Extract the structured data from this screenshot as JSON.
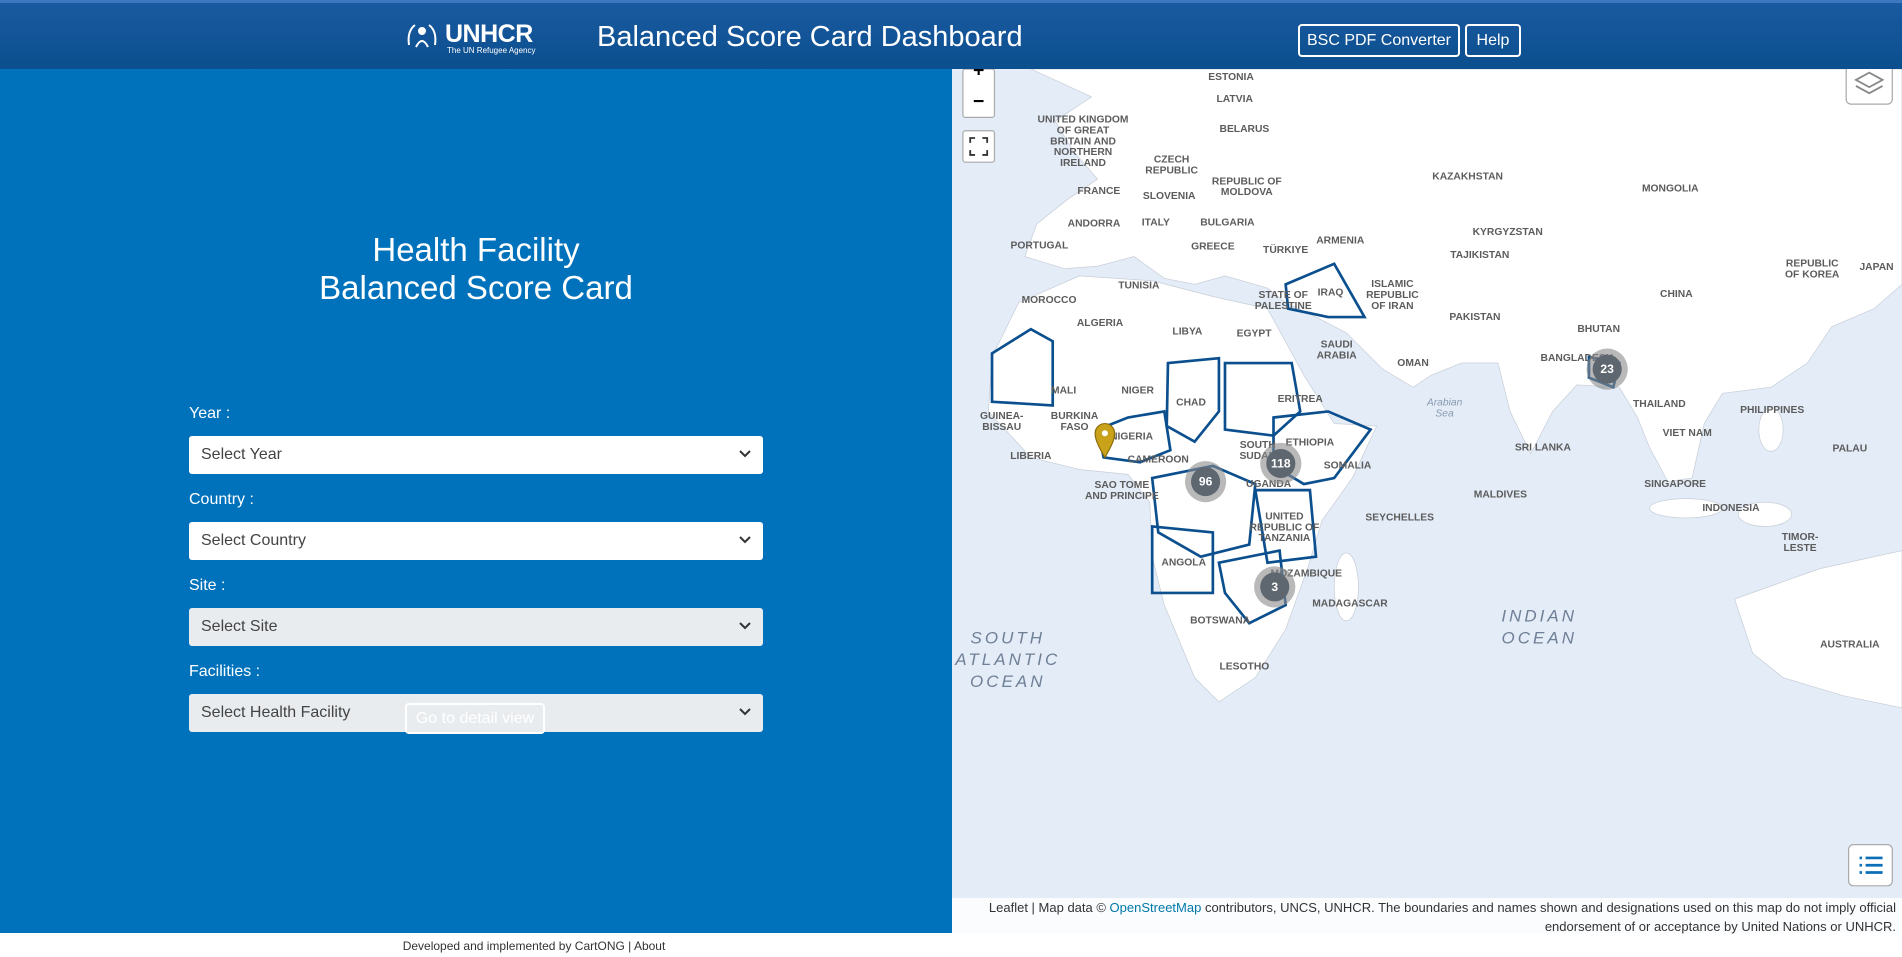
{
  "header": {
    "logo": "UNHCR",
    "logo_subtitle": "The UN Refugee Agency",
    "title": "Balanced Score Card Dashboard",
    "buttons": [
      "BSC PDF Converter",
      "Help"
    ]
  },
  "form": {
    "title_lines": [
      "Health Facility",
      "Balanced Score Card"
    ],
    "fields": [
      {
        "label": "Year :",
        "placeholder": "Select Year"
      },
      {
        "label": "Country :",
        "placeholder": "Select Country"
      },
      {
        "label": "Site :",
        "placeholder": "Select Site"
      },
      {
        "label": "Facilities :",
        "placeholder": "Select Health Facility"
      }
    ],
    "submit": "Go to detail view"
  },
  "map": {
    "labels": [
      [
        "ESTONIA"
      ],
      [
        "LATVIA"
      ],
      [
        "UNITED KINGDOM",
        "OF GREAT",
        "BRITAIN AND",
        "NORTHERN",
        "IRELAND"
      ],
      [
        "BELARUS"
      ],
      [
        "CZECH",
        "REPUBLIC"
      ],
      [
        "REPUBLIC OF",
        "MOLDOVA"
      ],
      [
        "FRANCE"
      ],
      [
        "SLOVENIA"
      ],
      [
        "KAZAKHSTAN"
      ],
      [
        "MONGOLIA"
      ],
      [
        "ANDORRA"
      ],
      [
        "ITALY"
      ],
      [
        "BULGARIA"
      ],
      [
        "KYRGYZSTAN"
      ],
      [
        "PORTUGAL"
      ],
      [
        "GREECE"
      ],
      [
        "TÜRKIYE"
      ],
      [
        "ARMENIA"
      ],
      [
        "TAJIKISTAN"
      ],
      [
        "REPUBLIC",
        "OF KOREA"
      ],
      [
        "JAPAN"
      ],
      [
        "TUNISIA"
      ],
      [
        "IRAQ"
      ],
      [
        "ISLAMIC",
        "REPUBLIC",
        "OF IRAN"
      ],
      [
        "CHINA"
      ],
      [
        "STATE OF",
        "PALESTINE"
      ],
      [
        "MOROCCO"
      ],
      [
        "ALGERIA"
      ],
      [
        "LIBYA"
      ],
      [
        "EGYPT"
      ],
      [
        "PAKISTAN"
      ],
      [
        "BHUTAN"
      ],
      [
        "SAUDI",
        "ARABIA"
      ],
      [
        "OMAN"
      ],
      [
        "BANGLADESH"
      ],
      [
        "MALI"
      ],
      [
        "NIGER"
      ],
      [
        "CHAD"
      ],
      [
        "ERITREA"
      ],
      [
        "THAILAND"
      ],
      [
        "PHILIPPINES"
      ],
      [
        "Arabian",
        "Sea"
      ],
      [
        "BURKINA",
        "FASO"
      ],
      [
        "GUINEA-",
        "BISSAU"
      ],
      [
        "NIGERIA"
      ],
      [
        "ETHIOPIA"
      ],
      [
        "SOUTH",
        "SUDAN"
      ],
      [
        "VIET NAM"
      ],
      [
        "LIBERIA"
      ],
      [
        "CAMEROON"
      ],
      [
        "SOMALIA"
      ],
      [
        "SRI LANKA"
      ],
      [
        "PALAU"
      ],
      [
        "SAO TOME",
        "AND PRINCIPE"
      ],
      [
        "UGANDA"
      ],
      [
        "SINGAPORE"
      ],
      [
        "MALDIVES"
      ],
      [
        "INDONESIA"
      ],
      [
        "UNITED",
        "REPUBLIC OF",
        "TANZANIA"
      ],
      [
        "SEYCHELLES"
      ],
      [
        "TIMOR-",
        "LESTE"
      ],
      [
        "ANGOLA"
      ],
      [
        "MOZAMBIQUE"
      ],
      [
        "MADAGASCAR"
      ],
      [
        "BOTSWANA"
      ],
      [
        "INDIAN",
        "OCEAN"
      ],
      [
        "SOUTH",
        "ATLANTIC",
        "OCEAN"
      ],
      [
        "AUSTRALIA"
      ],
      [
        "LESOTHO"
      ]
    ],
    "clusters": [
      23,
      118,
      96,
      3
    ],
    "attribution": {
      "prefix": "Leaflet | Map data © ",
      "link": "OpenStreetMap",
      "suffix": " contributors, UNCS, UNHCR. The boundaries and names shown and designations used on this map do not imply official",
      "line2": "endorsement of or acceptance by United Nations or UNHCR."
    }
  },
  "footer": "Developed and implemented by CartONG | About"
}
